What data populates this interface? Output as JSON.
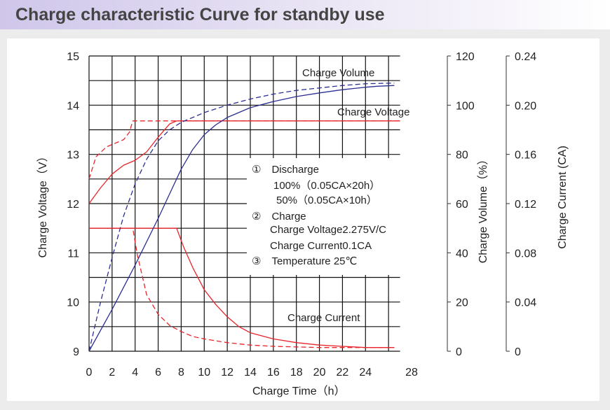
{
  "header": {
    "title": "Charge characteristic Curve for standby use"
  },
  "chart_data": {
    "type": "line",
    "title": "Charge characteristic Curve for standby use",
    "xlabel": "Charge Time（h）",
    "x_ticks": [
      "0",
      "2",
      "4",
      "6",
      "8",
      "10",
      "12",
      "14",
      "16",
      "18",
      "20",
      "22",
      "24",
      "28"
    ],
    "xlim": [
      0,
      28
    ],
    "y_axes": [
      {
        "label": "Charge Voltage（V）",
        "range": [
          9,
          15
        ],
        "ticks": [
          "15",
          "14",
          "13",
          "12",
          "11",
          "10",
          "9"
        ],
        "side": "left"
      },
      {
        "label": "Charge Volume（%）",
        "range": [
          0,
          120
        ],
        "ticks": [
          "120",
          "100",
          "80",
          "60",
          "40",
          "20",
          "0"
        ],
        "side": "right"
      },
      {
        "label": "Charge Current (CA)",
        "range": [
          0,
          0.24
        ],
        "ticks": [
          "0.24",
          "0.20",
          "0.16",
          "0.12",
          "0.08",
          "0.04",
          "0"
        ],
        "side": "right"
      }
    ],
    "grid": true,
    "annotations": {
      "charge_volume": "Charge Volume",
      "charge_voltage": "Charge Voltage",
      "charge_current": "Charge Current"
    },
    "legend_box": {
      "lines": [
        "①　Discharge",
        "100%（0.05CA×20h）",
        "50%（0.05CA×10h）",
        "②　Charge",
        "Charge Voltage2.275V/C",
        "Charge Current0.1CA",
        "③　Temperature 25℃"
      ]
    },
    "series": [
      {
        "group": "charge_voltage",
        "axis": "voltage",
        "color": "#e8252b",
        "dash": false,
        "x": [
          0,
          1,
          2,
          3,
          4,
          5,
          6,
          7,
          7.6,
          27
        ],
        "y": [
          12.0,
          12.32,
          12.6,
          12.78,
          12.88,
          13.05,
          13.35,
          13.62,
          13.68,
          13.68
        ]
      },
      {
        "group": "charge_voltage",
        "axis": "voltage",
        "color": "#e8252b",
        "dash": true,
        "x": [
          0,
          0.6,
          1.5,
          3.0,
          3.5,
          3.8,
          27
        ],
        "y": [
          12.5,
          12.95,
          13.15,
          13.3,
          13.45,
          13.68,
          13.68
        ]
      },
      {
        "group": "charge_current",
        "axis": "current",
        "color": "#e8252b",
        "dash": false,
        "x": [
          0,
          7.6,
          8.2,
          9,
          10,
          11,
          12,
          13,
          14,
          16,
          18,
          20,
          22,
          24,
          26.5
        ],
        "y": [
          0.1,
          0.1,
          0.085,
          0.068,
          0.05,
          0.038,
          0.028,
          0.02,
          0.015,
          0.01,
          0.007,
          0.005,
          0.004,
          0.003,
          0.003
        ]
      },
      {
        "group": "charge_current",
        "axis": "current",
        "color": "#e8252b",
        "dash": true,
        "x": [
          0,
          3.8,
          4.2,
          5,
          6,
          7,
          8,
          9,
          10,
          12,
          14,
          16,
          20,
          24,
          26.5
        ],
        "y": [
          0.1,
          0.1,
          0.078,
          0.046,
          0.03,
          0.021,
          0.016,
          0.012,
          0.01,
          0.007,
          0.005,
          0.004,
          0.003,
          0.003,
          0.003
        ]
      },
      {
        "group": "charge_volume",
        "axis": "volume",
        "color": "#2c2f91",
        "dash": false,
        "x": [
          0,
          2,
          4,
          6,
          7,
          8,
          9,
          10,
          11,
          12,
          14,
          16,
          18,
          20,
          22,
          24,
          25,
          26.5
        ],
        "y": [
          0,
          17,
          35,
          54,
          64,
          74,
          82,
          88,
          92,
          95,
          99,
          101.5,
          103.5,
          105,
          106.3,
          107.3,
          107.7,
          108
        ]
      },
      {
        "group": "charge_volume",
        "axis": "volume",
        "color": "#2c2f91",
        "dash": true,
        "x": [
          0,
          1,
          2,
          3,
          4,
          5,
          6,
          7,
          8,
          10,
          12,
          14,
          16,
          18,
          20,
          22,
          24,
          26.5
        ],
        "y": [
          0,
          20,
          38,
          55,
          68,
          78,
          85.5,
          90,
          93,
          97,
          100,
          102.5,
          104.5,
          106,
          107,
          108,
          108.7,
          109
        ]
      }
    ]
  }
}
